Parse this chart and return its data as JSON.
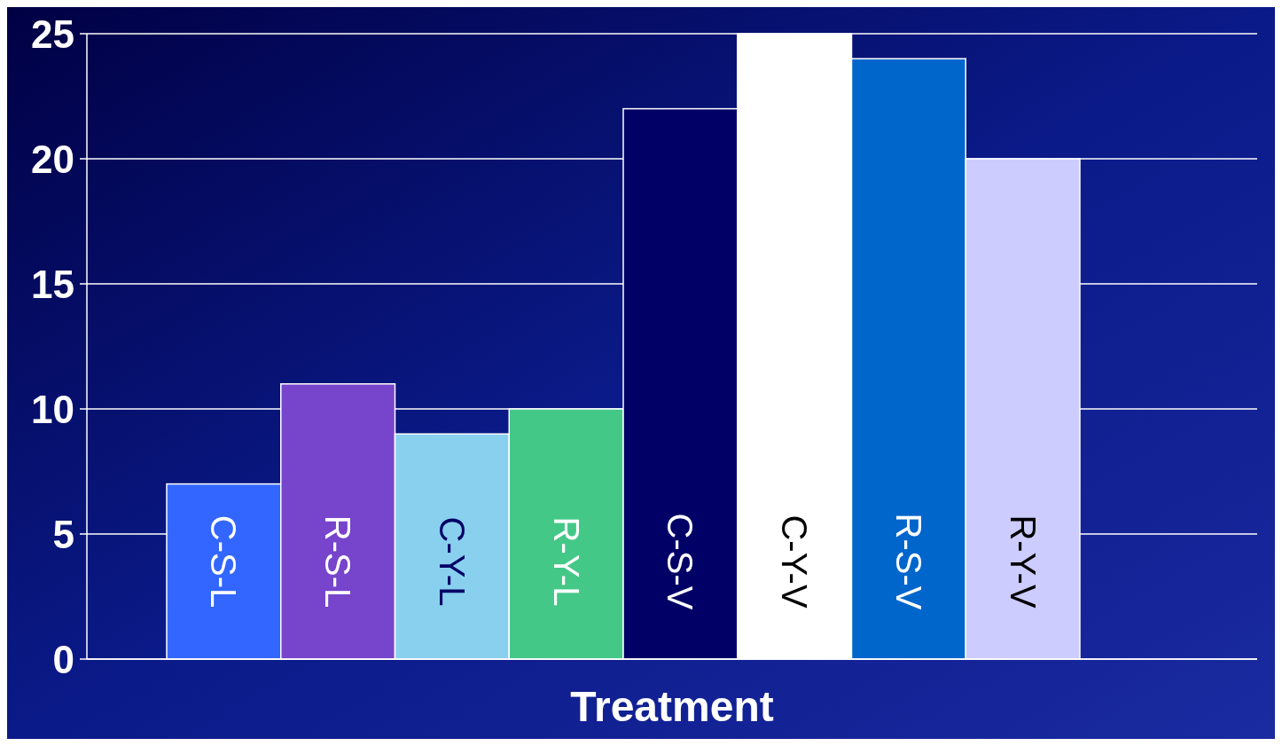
{
  "chart_data": {
    "type": "bar",
    "xlabel": "Treatment",
    "categories": [
      "C-S-L",
      "R-S-L",
      "C-Y-L",
      "R-Y-L",
      "C-S-V",
      "C-Y-V",
      "R-S-V",
      "R-Y-V"
    ],
    "values": [
      7,
      11,
      9,
      10,
      22,
      25,
      24,
      20
    ],
    "colors": [
      "#3366ff",
      "#7744cc",
      "#88d0ee",
      "#44c888",
      "#000066",
      "#ffffff",
      "#0066cc",
      "#ccccff"
    ],
    "ylim": [
      0,
      25
    ],
    "yticks": [
      0,
      5,
      10,
      15,
      20,
      25
    ],
    "grid": "y"
  }
}
